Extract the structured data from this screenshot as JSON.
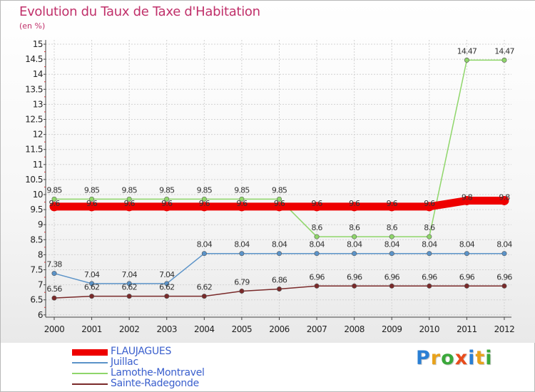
{
  "header": {
    "title": "Evolution du Taux de Taxe d'Habitation",
    "unit": "(en %)"
  },
  "logo": {
    "text": "Proxiti",
    "colors": [
      "#2a7fd4",
      "#e8a21c",
      "#3aa83a",
      "#e84c1c",
      "#2a7fd4",
      "#e8a21c",
      "#3aa83a"
    ]
  },
  "chart_data": {
    "type": "line",
    "title": "Evolution du Taux de Taxe d'Habitation",
    "ylabel": "(en %)",
    "xlabel": "",
    "x": [
      "2000",
      "2001",
      "2002",
      "2003",
      "2004",
      "2005",
      "2006",
      "2007",
      "2008",
      "2009",
      "2010",
      "2011",
      "2012"
    ],
    "ylim": [
      6,
      15
    ],
    "yticks": [
      6,
      6.5,
      7,
      7.5,
      8,
      8.5,
      9,
      9.5,
      10,
      10.5,
      11,
      11.5,
      12,
      12.5,
      13,
      13.5,
      14,
      14.5,
      15
    ],
    "ytick_labels": [
      "6",
      "6.5",
      "7",
      "7.5",
      "8",
      "8.5",
      "9",
      "9.5",
      "10",
      "10.5",
      "11",
      "11.5",
      "12",
      "12.5",
      "13",
      "13.5",
      "14",
      "14.5",
      "15"
    ],
    "grid": true,
    "legend_position": "bottom-left",
    "series": [
      {
        "name": "FLAUJAGUES",
        "color": "#ee0000",
        "values": [
          9.6,
          9.6,
          9.6,
          9.6,
          9.6,
          9.6,
          9.6,
          9.6,
          9.6,
          9.6,
          9.6,
          9.8,
          9.8
        ],
        "labels": [
          "9.6",
          "9.6",
          "9.6",
          "9.6",
          "9.6",
          "9.6",
          "9.6",
          "9.6",
          "9.6",
          "9.6",
          "9.6",
          "9.8",
          "9.8"
        ]
      },
      {
        "name": "Juillac",
        "color": "#5b93c8",
        "values": [
          7.38,
          7.04,
          7.04,
          7.04,
          8.04,
          8.04,
          8.04,
          8.04,
          8.04,
          8.04,
          8.04,
          8.04,
          8.04
        ],
        "labels": [
          "7.38",
          "7.04",
          "7.04",
          "7.04",
          "8.04",
          "8.04",
          "8.04",
          "8.04",
          "8.04",
          "8.04",
          "8.04",
          "8.04",
          "8.04"
        ]
      },
      {
        "name": "Lamothe-Montravel",
        "color": "#8fd66a",
        "values": [
          9.85,
          9.85,
          9.85,
          9.85,
          9.85,
          9.85,
          9.85,
          8.6,
          8.6,
          8.6,
          8.6,
          14.47,
          14.47
        ],
        "labels": [
          "9.85",
          "9.85",
          "9.85",
          "9.85",
          "9.85",
          "9.85",
          "9.85",
          "8.6",
          "8.6",
          "8.6",
          "8.6",
          "14.47",
          "14.47"
        ]
      },
      {
        "name": "Sainte-Radegonde",
        "color": "#7a2a2a",
        "values": [
          6.56,
          6.62,
          6.62,
          6.62,
          6.62,
          6.79,
          6.86,
          6.96,
          6.96,
          6.96,
          6.96,
          6.96,
          6.96
        ],
        "labels": [
          "6.56",
          "6.62",
          "6.62",
          "6.62",
          "6.62",
          "6.79",
          "6.86",
          "6.96",
          "6.96",
          "6.96",
          "6.96",
          "6.96",
          "6.96"
        ]
      }
    ]
  }
}
